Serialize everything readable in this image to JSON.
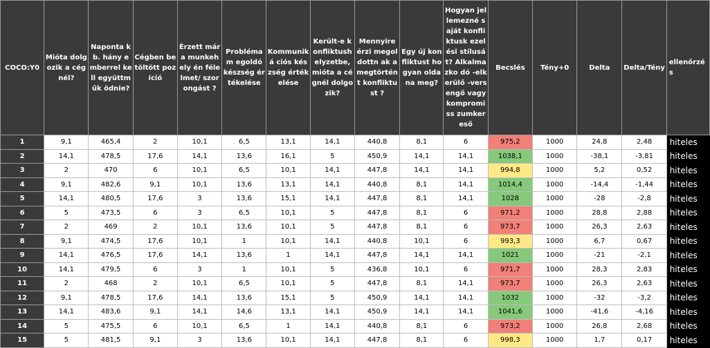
{
  "colors": {
    "red": "#f08078",
    "yellow": "#ffe987",
    "green": "#86c97b"
  },
  "headers": [
    "COCO:Y0",
    "Mióta dolgozik a cégnél?",
    "Naponta kb. hány emberrel kell együttműk ödnie?",
    "Cégben betöltött pozíció",
    "Érzett már a munkehely én félelmet/ szorongást ?",
    "Problémam egoldó készség értékelése",
    "Kommuniká ciós készség értékelése",
    "Került-e konfliktush elyzetbe, mióta a cégnél dolgozik?",
    "Mennyire érzi megoldottn ak a megtörtént konfliktust ?",
    "Egy új konfliktust hogyan oldana meg?",
    "Hogyan jellemezné saját konfliktusk ezelési stílusát? Alkalmazko dó -elkerülő -versengő vagy kompromiss zumkereső",
    "Becslés",
    "Tény+0",
    "Delta",
    "Delta/Tény",
    "ellenőrzés"
  ],
  "rows": [
    {
      "idx": "1",
      "cells": [
        "9,1",
        "465,4",
        "2",
        "10,1",
        "6,5",
        "13,1",
        "14,1",
        "440,8",
        "8,1",
        "6"
      ],
      "becsles": "975,2",
      "color": "red",
      "teny": "1000",
      "delta": "24,8",
      "deltateny": "2,48",
      "check": "hiteles"
    },
    {
      "idx": "2",
      "cells": [
        "14,1",
        "478,5",
        "17,6",
        "14,1",
        "13,6",
        "16,1",
        "5",
        "450,9",
        "14,1",
        "14,1"
      ],
      "becsles": "1038,1",
      "color": "green",
      "teny": "1000",
      "delta": "-38,1",
      "deltateny": "-3,81",
      "check": "hiteles"
    },
    {
      "idx": "3",
      "cells": [
        "2",
        "470",
        "6",
        "10,1",
        "6,5",
        "10,1",
        "14,1",
        "447,8",
        "14,1",
        "14,1"
      ],
      "becsles": "994,8",
      "color": "yellow",
      "teny": "1000",
      "delta": "5,2",
      "deltateny": "0,52",
      "check": "hiteles"
    },
    {
      "idx": "4",
      "cells": [
        "9,1",
        "482,6",
        "9,1",
        "10,1",
        "13,6",
        "13,1",
        "14,1",
        "440,8",
        "8,1",
        "14,1"
      ],
      "becsles": "1014,4",
      "color": "green",
      "teny": "1000",
      "delta": "-14,4",
      "deltateny": "-1,44",
      "check": "hiteles"
    },
    {
      "idx": "5",
      "cells": [
        "14,1",
        "480,5",
        "17,6",
        "3",
        "13,6",
        "15,1",
        "14,1",
        "447,8",
        "8,1",
        "14,1"
      ],
      "becsles": "1028",
      "color": "green",
      "teny": "1000",
      "delta": "-28",
      "deltateny": "-2,8",
      "check": "hiteles"
    },
    {
      "idx": "6",
      "cells": [
        "5",
        "473,5",
        "6",
        "3",
        "6,5",
        "10,1",
        "5",
        "447,8",
        "8,1",
        "6"
      ],
      "becsles": "971,2",
      "color": "red",
      "teny": "1000",
      "delta": "28,8",
      "deltateny": "2,88",
      "check": "hiteles"
    },
    {
      "idx": "7",
      "cells": [
        "2",
        "469",
        "2",
        "10,1",
        "13,6",
        "10,1",
        "5",
        "447,8",
        "8,1",
        "6"
      ],
      "becsles": "973,7",
      "color": "red",
      "teny": "1000",
      "delta": "26,3",
      "deltateny": "2,63",
      "check": "hiteles"
    },
    {
      "idx": "8",
      "cells": [
        "9,1",
        "474,5",
        "17,6",
        "10,1",
        "1",
        "10,1",
        "14,1",
        "440,8",
        "10,1",
        "6"
      ],
      "becsles": "993,3",
      "color": "yellow",
      "teny": "1000",
      "delta": "6,7",
      "deltateny": "0,67",
      "check": "hiteles"
    },
    {
      "idx": "9",
      "cells": [
        "14,1",
        "476,5",
        "17,6",
        "14,1",
        "13,6",
        "1",
        "14,1",
        "447,8",
        "14,1",
        "14,1"
      ],
      "becsles": "1021",
      "color": "green",
      "teny": "1000",
      "delta": "-21",
      "deltateny": "-2,1",
      "check": "hiteles"
    },
    {
      "idx": "10",
      "cells": [
        "14,1",
        "479,5",
        "6",
        "3",
        "1",
        "10,1",
        "5",
        "436,8",
        "10,1",
        "6"
      ],
      "becsles": "971,7",
      "color": "red",
      "teny": "1000",
      "delta": "28,3",
      "deltateny": "2,83",
      "check": "hiteles"
    },
    {
      "idx": "11",
      "cells": [
        "2",
        "468",
        "2",
        "10,1",
        "6,5",
        "10,1",
        "5",
        "447,8",
        "8,1",
        "14,1"
      ],
      "becsles": "973,7",
      "color": "red",
      "teny": "1000",
      "delta": "26,3",
      "deltateny": "2,63",
      "check": "hiteles"
    },
    {
      "idx": "12",
      "cells": [
        "9,1",
        "478,5",
        "17,6",
        "14,1",
        "13,6",
        "15,1",
        "5",
        "450,9",
        "14,1",
        "14,1"
      ],
      "becsles": "1032",
      "color": "green",
      "teny": "1000",
      "delta": "-32",
      "deltateny": "-3,2",
      "check": "hiteles"
    },
    {
      "idx": "13",
      "cells": [
        "14,1",
        "483,6",
        "9,1",
        "14,1",
        "14,6",
        "13,1",
        "14,1",
        "450,9",
        "14,1",
        "14,1"
      ],
      "becsles": "1041,6",
      "color": "green",
      "teny": "1000",
      "delta": "-41,6",
      "deltateny": "-4,16",
      "check": "hiteles"
    },
    {
      "idx": "14",
      "cells": [
        "5",
        "475,5",
        "6",
        "10,1",
        "6,5",
        "1",
        "14,1",
        "440,8",
        "8,1",
        "6"
      ],
      "becsles": "973,2",
      "color": "red",
      "teny": "1000",
      "delta": "26,8",
      "deltateny": "2,68",
      "check": "hiteles"
    },
    {
      "idx": "15",
      "cells": [
        "5",
        "481,5",
        "9,1",
        "3",
        "13,6",
        "10,1",
        "14,1",
        "447,8",
        "8,1",
        "6"
      ],
      "becsles": "998,3",
      "color": "yellow",
      "teny": "1000",
      "delta": "1,7",
      "deltateny": "0,17",
      "check": "hiteles"
    }
  ]
}
